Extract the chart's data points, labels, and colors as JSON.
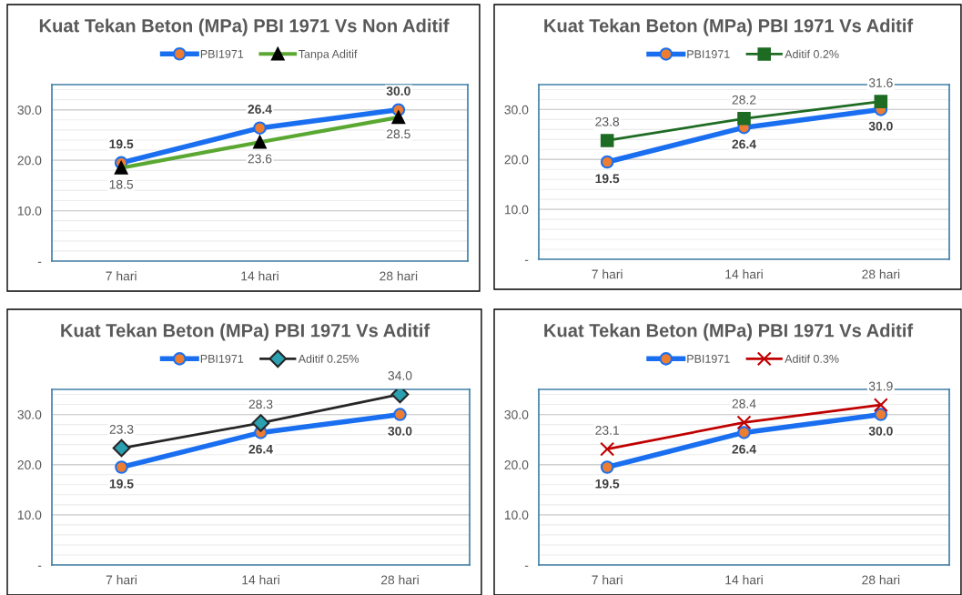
{
  "chart_data": [
    {
      "type": "line",
      "title": "Kuat Tekan Beton (MPa) PBI 1971 Vs Non Aditif",
      "categories": [
        "7 hari",
        "14 hari",
        "28 hari"
      ],
      "series": [
        {
          "name": "PBI1971",
          "color": "#1a6ff0",
          "marker": "circle",
          "values": [
            19.5,
            26.4,
            30.0
          ],
          "value_labels": [
            "19.5",
            "26.4",
            "30.0"
          ]
        },
        {
          "name": "Tanpa Aditif",
          "color": "#5aa832",
          "marker": "triangle",
          "values": [
            18.5,
            23.6,
            28.5
          ],
          "value_labels": [
            "18.5",
            "23.6",
            "28.5"
          ]
        }
      ],
      "ylim": [
        0,
        35
      ],
      "yticks": [
        {
          "value": 0,
          "label": "-"
        },
        {
          "value": 10,
          "label": "10.0"
        },
        {
          "value": 20,
          "label": "20.0"
        },
        {
          "value": 30,
          "label": "30.0"
        }
      ],
      "grid": "y",
      "legend": "top"
    },
    {
      "type": "line",
      "title": "Kuat Tekan Beton (MPa) PBI 1971 Vs Aditif",
      "categories": [
        "7 hari",
        "14 hari",
        "28 hari"
      ],
      "series": [
        {
          "name": "PBI1971",
          "color": "#1a6ff0",
          "marker": "circle",
          "values": [
            19.5,
            26.4,
            30.0
          ],
          "value_labels": [
            "19.5",
            "26.4",
            "30.0"
          ]
        },
        {
          "name": "Aditif 0.2%",
          "color": "#1e6b23",
          "marker": "square",
          "values": [
            23.8,
            28.2,
            31.6
          ],
          "value_labels": [
            "23.8",
            "28.2",
            "31.6"
          ]
        }
      ],
      "ylim": [
        0,
        35
      ],
      "yticks": [
        {
          "value": 0,
          "label": "-"
        },
        {
          "value": 10,
          "label": "10.0"
        },
        {
          "value": 20,
          "label": "20.0"
        },
        {
          "value": 30,
          "label": "30.0"
        }
      ],
      "grid": "y",
      "legend": "top"
    },
    {
      "type": "line",
      "title": "Kuat Tekan Beton (MPa) PBI 1971 Vs Aditif",
      "categories": [
        "7 hari",
        "14 hari",
        "28 hari"
      ],
      "series": [
        {
          "name": "PBI1971",
          "color": "#1a6ff0",
          "marker": "circle",
          "values": [
            19.5,
            26.4,
            30.0
          ],
          "value_labels": [
            "19.5",
            "26.4",
            "30.0"
          ]
        },
        {
          "name": "Aditif 0.25%",
          "color": "#262626",
          "marker": "diamond",
          "values": [
            23.3,
            28.3,
            34.0
          ],
          "value_labels": [
            "23.3",
            "28.3",
            "34.0"
          ]
        }
      ],
      "ylim": [
        0,
        35
      ],
      "yticks": [
        {
          "value": 0,
          "label": "-"
        },
        {
          "value": 10,
          "label": "10.0"
        },
        {
          "value": 20,
          "label": "20.0"
        },
        {
          "value": 30,
          "label": "30.0"
        }
      ],
      "grid": "y",
      "legend": "top"
    },
    {
      "type": "line",
      "title": "Kuat Tekan Beton (MPa) PBI 1971 Vs Aditif",
      "categories": [
        "7 hari",
        "14 hari",
        "28 hari"
      ],
      "series": [
        {
          "name": "PBI1971",
          "color": "#1a6ff0",
          "marker": "circle",
          "values": [
            19.5,
            26.4,
            30.0
          ],
          "value_labels": [
            "19.5",
            "26.4",
            "30.0"
          ]
        },
        {
          "name": "Aditif 0.3%",
          "color": "#c00000",
          "marker": "cross",
          "values": [
            23.1,
            28.4,
            31.9
          ],
          "value_labels": [
            "23.1",
            "28.4",
            "31.9"
          ]
        }
      ],
      "ylim": [
        0,
        35
      ],
      "yticks": [
        {
          "value": 0,
          "label": "-"
        },
        {
          "value": 10,
          "label": "10.0"
        },
        {
          "value": 20,
          "label": "20.0"
        },
        {
          "value": 30,
          "label": "30.0"
        }
      ],
      "grid": "y",
      "legend": "top"
    }
  ]
}
